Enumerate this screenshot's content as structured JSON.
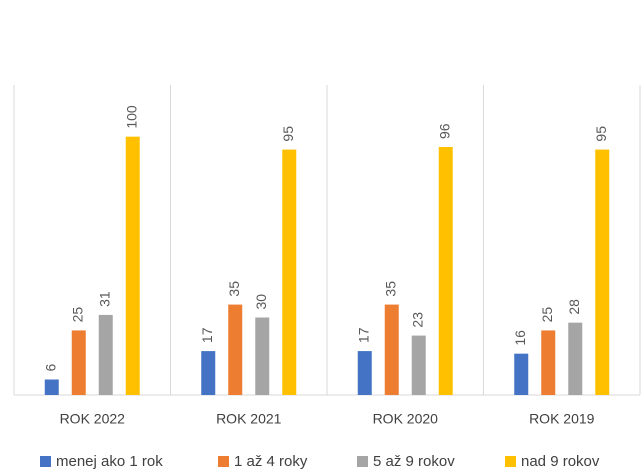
{
  "chart_data": {
    "type": "bar",
    "categories": [
      "ROK 2022",
      "ROK 2021",
      "ROK 2020",
      "ROK 2019"
    ],
    "series": [
      {
        "name": "menej ako 1 rok",
        "color": "#4472c4",
        "values": [
          6,
          17,
          17,
          16
        ]
      },
      {
        "name": "1 až 4 roky",
        "color": "#ed7d31",
        "values": [
          25,
          35,
          35,
          25
        ]
      },
      {
        "name": "5 až 9 rokov",
        "color": "#a5a5a5",
        "values": [
          31,
          30,
          23,
          28
        ]
      },
      {
        "name": "nad 9 rokov",
        "color": "#ffc000",
        "values": [
          100,
          95,
          96,
          95
        ]
      }
    ],
    "ylim": [
      0,
      120
    ]
  }
}
